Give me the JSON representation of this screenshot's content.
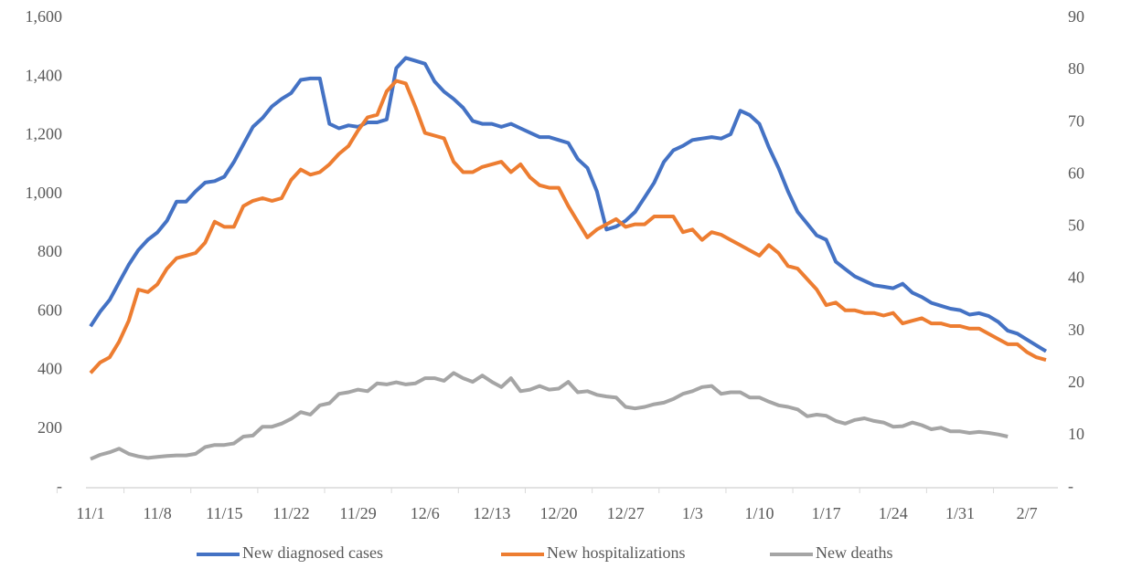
{
  "chart_data": {
    "type": "line",
    "categories": [
      "11/1",
      null,
      null,
      null,
      null,
      null,
      null,
      "11/8",
      null,
      null,
      null,
      null,
      null,
      null,
      "11/15",
      null,
      null,
      null,
      null,
      null,
      null,
      "11/22",
      null,
      null,
      null,
      null,
      null,
      null,
      "11/29",
      null,
      null,
      null,
      null,
      null,
      null,
      "12/6",
      null,
      null,
      null,
      null,
      null,
      null,
      "12/13",
      null,
      null,
      null,
      null,
      null,
      null,
      "12/20",
      null,
      null,
      null,
      null,
      null,
      null,
      "12/27",
      null,
      null,
      null,
      null,
      null,
      null,
      "1/3",
      null,
      null,
      null,
      null,
      null,
      null,
      "1/10",
      null,
      null,
      null,
      null,
      null,
      null,
      "1/17",
      null,
      null,
      null,
      null,
      null,
      null,
      "1/24",
      null,
      null,
      null,
      null,
      null,
      null,
      "1/31",
      null,
      null,
      null,
      null,
      null,
      null,
      "2/7",
      null,
      null
    ],
    "series": [
      {
        "name": "New diagnosed cases",
        "color": "#4472c4",
        "axis": "y",
        "values": [
          550,
          600,
          640,
          700,
          760,
          810,
          845,
          870,
          910,
          975,
          975,
          1010,
          1040,
          1045,
          1060,
          1110,
          1170,
          1230,
          1260,
          1300,
          1325,
          1345,
          1390,
          1395,
          1395,
          1240,
          1225,
          1235,
          1230,
          1245,
          1245,
          1255,
          1430,
          1465,
          1455,
          1445,
          1385,
          1350,
          1325,
          1295,
          1250,
          1240,
          1240,
          1230,
          1240,
          1225,
          1210,
          1195,
          1195,
          1185,
          1175,
          1120,
          1090,
          1010,
          880,
          890,
          910,
          940,
          990,
          1040,
          1110,
          1150,
          1165,
          1185,
          1190,
          1195,
          1190,
          1205,
          1285,
          1270,
          1240,
          1160,
          1090,
          1010,
          940,
          900,
          860,
          845,
          770,
          745,
          720,
          705,
          690,
          685,
          680,
          695,
          665,
          650,
          630,
          620,
          610,
          605,
          590,
          595,
          585,
          565,
          535,
          525,
          505,
          485,
          465
        ]
      },
      {
        "name": "New hospitalizations",
        "color": "#ed7d31",
        "axis": "y2",
        "values": [
          22,
          24,
          25,
          28,
          32,
          38,
          37.5,
          39,
          42,
          44,
          44.5,
          45,
          47,
          51,
          50,
          50,
          54,
          55,
          55.5,
          55,
          55.5,
          59,
          61,
          60,
          60.5,
          62,
          64,
          65.5,
          68.5,
          71,
          71.5,
          76,
          78,
          77.5,
          73,
          68,
          67.5,
          67,
          62.5,
          60.5,
          60.5,
          61.5,
          62,
          62.5,
          60.5,
          62,
          59.5,
          58,
          57.5,
          57.5,
          54,
          51,
          48,
          49.5,
          50.5,
          51.5,
          50,
          50.5,
          50.5,
          52,
          52,
          52,
          49,
          49.5,
          47.5,
          49,
          48.5,
          47.5,
          46.5,
          45.5,
          44.5,
          46.5,
          45,
          42.5,
          42,
          40,
          38,
          35,
          35.5,
          34,
          34,
          33.5,
          33.5,
          33,
          33.5,
          31.5,
          32,
          32.5,
          31.5,
          31.5,
          31,
          31,
          30.5,
          30.5,
          29.5,
          28.5,
          27.5,
          27.5,
          26,
          25,
          24.5
        ]
      },
      {
        "name": "New deaths",
        "color": "#a5a5a5",
        "axis": "y2",
        "values": [
          5.5,
          6.3,
          6.8,
          7.5,
          6.5,
          6,
          5.7,
          5.9,
          6.1,
          6.2,
          6.2,
          6.5,
          7.8,
          8.2,
          8.2,
          8.5,
          9.8,
          10,
          11.7,
          11.7,
          12.3,
          13.2,
          14.5,
          14,
          15.8,
          16.2,
          18,
          18.3,
          18.8,
          18.5,
          20,
          19.8,
          20.2,
          19.8,
          20,
          21,
          21,
          20.5,
          22,
          21,
          20.3,
          21.5,
          20.3,
          19.3,
          21,
          18.5,
          18.8,
          19.5,
          18.8,
          19,
          20.3,
          18.3,
          18.5,
          17.8,
          17.5,
          17.3,
          15.5,
          15.2,
          15.5,
          16,
          16.3,
          17,
          18,
          18.5,
          19.3,
          19.5,
          18,
          18.3,
          18.3,
          17.3,
          17.3,
          16.5,
          15.8,
          15.5,
          15,
          13.7,
          14,
          13.8,
          12.8,
          12.3,
          13,
          13.3,
          12.8,
          12.5,
          11.7,
          11.8,
          12.5,
          12,
          11.2,
          11.5,
          10.8,
          10.8,
          10.5,
          10.7,
          10.5,
          10.2,
          9.8,
          null,
          null,
          null,
          null
        ]
      }
    ],
    "ylim": [
      0,
      1600
    ],
    "yticks": [
      {
        "value": 0,
        "label": "-"
      },
      200,
      400,
      600,
      800,
      {
        "value": 1000,
        "label": "1,000"
      },
      {
        "value": 1200,
        "label": "1,200"
      },
      {
        "value": 1400,
        "label": "1,400"
      },
      {
        "value": 1600,
        "label": "1,600"
      }
    ],
    "y2lim": [
      0,
      90
    ],
    "y2ticks": [
      {
        "value": 0,
        "label": "-"
      },
      10,
      20,
      30,
      40,
      50,
      60,
      70,
      80,
      90
    ],
    "grid": false,
    "legend": "bottom"
  }
}
